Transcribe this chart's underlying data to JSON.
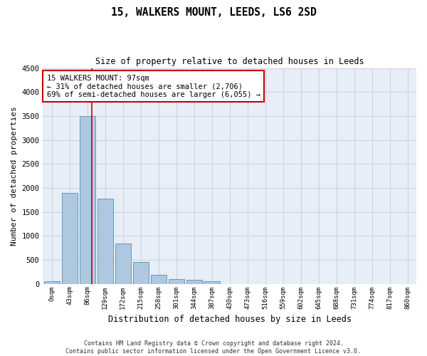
{
  "title": "15, WALKERS MOUNT, LEEDS, LS6 2SD",
  "subtitle": "Size of property relative to detached houses in Leeds",
  "xlabel": "Distribution of detached houses by size in Leeds",
  "ylabel": "Number of detached properties",
  "categories": [
    "0sqm",
    "43sqm",
    "86sqm",
    "129sqm",
    "172sqm",
    "215sqm",
    "258sqm",
    "301sqm",
    "344sqm",
    "387sqm",
    "430sqm",
    "473sqm",
    "516sqm",
    "559sqm",
    "602sqm",
    "645sqm",
    "688sqm",
    "731sqm",
    "774sqm",
    "817sqm",
    "860sqm"
  ],
  "bar_values": [
    50,
    1900,
    3500,
    1775,
    840,
    460,
    185,
    100,
    80,
    50,
    0,
    0,
    0,
    0,
    0,
    0,
    0,
    0,
    0,
    0,
    0
  ],
  "bar_color": "#adc8e0",
  "bar_edge_color": "#6699bb",
  "property_sqm": 97,
  "annotation_line1": "15 WALKERS MOUNT: 97sqm",
  "annotation_line2": "← 31% of detached houses are smaller (2,706)",
  "annotation_line3": "69% of semi-detached houses are larger (6,055) →",
  "annotation_box_color": "#ffffff",
  "annotation_box_edge_color": "#cc0000",
  "ylim": [
    0,
    4500
  ],
  "grid_color": "#c8d4e8",
  "background_color": "#e8eef6",
  "footer_line1": "Contains HM Land Registry data © Crown copyright and database right 2024.",
  "footer_line2": "Contains public sector information licensed under the Open Government Licence v3.0."
}
